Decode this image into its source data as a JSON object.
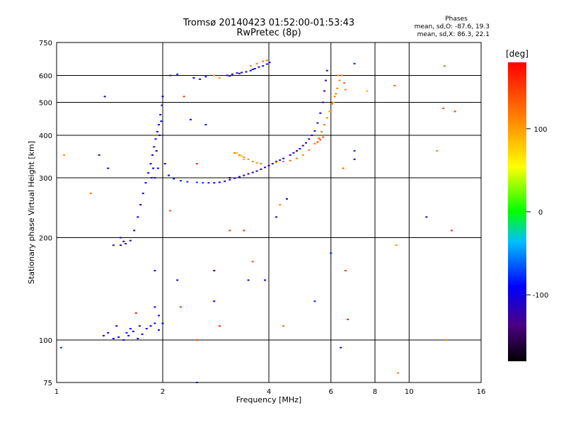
{
  "header": {
    "title_line1": "Tromsø 20140423 01:52:00-01:53:43",
    "title_line2": "RwPretec (8p)"
  },
  "stats": {
    "title": "Phases",
    "line_o": "mean, sd,O: -87.6, 19.3",
    "line_x": "mean, sd,X: 86.3, 22.1"
  },
  "colorbar": {
    "label": "[deg]",
    "ticks": [
      {
        "value": 100,
        "label": "100"
      },
      {
        "value": 0,
        "label": "0"
      },
      {
        "value": -100,
        "label": "-100"
      }
    ],
    "range": [
      -180,
      180
    ]
  },
  "chart_data": {
    "type": "scatter",
    "title": "Tromsø 20140423 01:52:00-01:53:43",
    "subtitle": "RwPretec (8p)",
    "xlabel": "Frequency [MHz]",
    "ylabel": "Stationary phase Virtual Height [km]",
    "x_scale": "log",
    "y_scale": "log",
    "xlim": [
      1,
      16
    ],
    "ylim": [
      75,
      750
    ],
    "x_ticks": [
      {
        "value": 1,
        "label": "1"
      },
      {
        "value": 2,
        "label": "2"
      },
      {
        "value": 4,
        "label": "4"
      },
      {
        "value": 6,
        "label": "6"
      },
      {
        "value": 8,
        "label": "8"
      },
      {
        "value": 10,
        "label": "10"
      },
      {
        "value": 16,
        "label": "16"
      }
    ],
    "y_ticks": [
      {
        "value": 75,
        "label": "75"
      },
      {
        "value": 100,
        "label": "100"
      },
      {
        "value": 200,
        "label": "200"
      },
      {
        "value": 300,
        "label": "300"
      },
      {
        "value": 400,
        "label": "400"
      },
      {
        "value": 500,
        "label": "500"
      },
      {
        "value": 600,
        "label": "600"
      },
      {
        "value": 750,
        "label": "750"
      }
    ],
    "grid": true,
    "color_by": "phase [deg]",
    "series": [
      {
        "points": [
          [
            1.36,
            103,
            -110
          ],
          [
            1.4,
            105,
            -100
          ],
          [
            1.45,
            101,
            -105
          ],
          [
            1.5,
            102,
            -95
          ],
          [
            1.55,
            100,
            -110
          ],
          [
            1.6,
            103,
            -100
          ],
          [
            1.65,
            106,
            -90
          ],
          [
            1.7,
            101,
            -105
          ],
          [
            1.75,
            104,
            -100
          ],
          [
            1.8,
            108,
            -95
          ],
          [
            1.85,
            110,
            -100
          ],
          [
            1.9,
            112,
            -85
          ],
          [
            1.95,
            107,
            -100
          ],
          [
            2.0,
            112,
            -90
          ],
          [
            1.72,
            110,
            -120
          ],
          [
            1.62,
            108,
            -95
          ],
          [
            1.48,
            110,
            -100
          ],
          [
            1.58,
            105,
            -85
          ],
          [
            1.95,
            118,
            -100
          ],
          [
            1.9,
            125,
            -110
          ],
          [
            1.52,
            190,
            -100
          ],
          [
            1.57,
            192,
            -110
          ],
          [
            1.62,
            196,
            -105
          ],
          [
            1.66,
            210,
            -100
          ],
          [
            1.7,
            230,
            -95
          ],
          [
            1.73,
            250,
            -100
          ],
          [
            1.76,
            270,
            -105
          ],
          [
            1.79,
            290,
            -100
          ],
          [
            1.82,
            310,
            -100
          ],
          [
            1.85,
            330,
            -95
          ],
          [
            1.87,
            350,
            -100
          ],
          [
            1.89,
            370,
            -105
          ],
          [
            1.91,
            390,
            -100
          ],
          [
            1.93,
            410,
            -95
          ],
          [
            1.95,
            430,
            -100
          ],
          [
            1.97,
            460,
            -100
          ],
          [
            1.99,
            490,
            -105
          ],
          [
            2.0,
            520,
            -100
          ],
          [
            1.98,
            440,
            -90
          ],
          [
            1.96,
            400,
            -110
          ],
          [
            1.92,
            360,
            -100
          ],
          [
            1.88,
            320,
            -95
          ],
          [
            1.86,
            300,
            -100
          ],
          [
            1.9,
            300,
            -110
          ],
          [
            1.94,
            320,
            -100
          ],
          [
            2.03,
            330,
            -100
          ],
          [
            2.08,
            305,
            -90
          ],
          [
            2.15,
            298,
            -85
          ],
          [
            2.25,
            294,
            -80
          ],
          [
            2.35,
            292,
            -75
          ],
          [
            2.5,
            291,
            -70
          ],
          [
            2.6,
            290,
            -75
          ],
          [
            2.7,
            290,
            -80
          ],
          [
            2.8,
            290,
            -90
          ],
          [
            2.9,
            291,
            -100
          ],
          [
            3.0,
            293,
            -105
          ],
          [
            3.1,
            296,
            -110
          ],
          [
            3.2,
            299,
            -115
          ],
          [
            3.3,
            302,
            -115
          ],
          [
            3.4,
            305,
            -110
          ],
          [
            3.5,
            308,
            -115
          ],
          [
            3.6,
            311,
            -110
          ],
          [
            3.7,
            314,
            -115
          ],
          [
            3.8,
            318,
            -110
          ],
          [
            3.9,
            322,
            -115
          ],
          [
            4.0,
            326,
            -110
          ],
          [
            4.1,
            330,
            -115
          ],
          [
            4.2,
            335,
            -110
          ],
          [
            4.4,
            342,
            -115
          ],
          [
            4.6,
            350,
            -110
          ],
          [
            4.8,
            360,
            -115
          ],
          [
            5.0,
            373,
            -110
          ],
          [
            5.2,
            390,
            -115
          ],
          [
            5.4,
            412,
            -110
          ],
          [
            5.5,
            435,
            -115
          ],
          [
            5.6,
            465,
            -110
          ],
          [
            5.7,
            500,
            -115
          ],
          [
            5.75,
            540,
            -110
          ],
          [
            5.8,
            580,
            -115
          ],
          [
            5.85,
            620,
            -110
          ],
          [
            5.3,
            400,
            -105
          ],
          [
            5.1,
            380,
            -110
          ],
          [
            4.9,
            365,
            -100
          ],
          [
            4.7,
            355,
            -115
          ],
          [
            4.3,
            338,
            -110
          ],
          [
            2.45,
            590,
            -95
          ],
          [
            2.55,
            585,
            -90
          ],
          [
            2.65,
            595,
            -85
          ],
          [
            3.05,
            600,
            -110
          ],
          [
            3.15,
            605,
            -100
          ],
          [
            3.25,
            610,
            -110
          ],
          [
            3.35,
            612,
            -120
          ],
          [
            3.45,
            615,
            -100
          ],
          [
            3.55,
            620,
            -110
          ],
          [
            3.65,
            628,
            -100
          ],
          [
            3.75,
            635,
            -110
          ],
          [
            3.85,
            640,
            -100
          ],
          [
            3.95,
            648,
            -110
          ],
          [
            4.02,
            655,
            -100
          ],
          [
            3.6,
            625,
            -90
          ],
          [
            3.3,
            608,
            -130
          ],
          [
            3.1,
            598,
            -110
          ],
          [
            2.1,
            600,
            -85
          ],
          [
            2.2,
            605,
            -75
          ],
          [
            1.9,
            160,
            -110
          ],
          [
            1.52,
            200,
            -105
          ],
          [
            1.55,
            195,
            -100
          ],
          [
            1.45,
            190,
            -120
          ],
          [
            1.4,
            320,
            -100
          ],
          [
            1.37,
            520,
            -110
          ],
          [
            1.03,
            95,
            -75
          ],
          [
            1.32,
            350,
            -110
          ],
          [
            2.5,
            75,
            -70
          ],
          [
            6.0,
            180,
            -80
          ],
          [
            6.4,
            95,
            -115
          ],
          [
            5.4,
            130,
            -80
          ],
          [
            7.0,
            340,
            -85
          ],
          [
            7.0,
            360,
            -75
          ],
          [
            7.0,
            650,
            -80
          ],
          [
            2.2,
            150,
            -110
          ],
          [
            4.2,
            230,
            -115
          ],
          [
            3.5,
            150,
            -110
          ],
          [
            4.5,
            260,
            -100
          ],
          [
            2.4,
            445,
            -90
          ],
          [
            2.65,
            430,
            -85
          ],
          [
            3.9,
            150,
            -90
          ],
          [
            2.8,
            130,
            -95
          ],
          [
            11.2,
            230,
            -115
          ],
          [
            3.1,
            300,
            -160
          ],
          [
            2.8,
            160,
            -150
          ]
        ]
      },
      {
        "points": [
          [
            3.2,
            355,
            120
          ],
          [
            3.3,
            350,
            115
          ],
          [
            3.4,
            345,
            110
          ],
          [
            3.5,
            340,
            105
          ],
          [
            3.6,
            335,
            110
          ],
          [
            3.7,
            332,
            100
          ],
          [
            3.8,
            330,
            115
          ],
          [
            3.4,
            340,
            95
          ],
          [
            3.35,
            348,
            85
          ],
          [
            3.25,
            355,
            80
          ],
          [
            4.2,
            333,
            110
          ],
          [
            4.4,
            335,
            115
          ],
          [
            4.6,
            337,
            120
          ],
          [
            4.8,
            342,
            115
          ],
          [
            5.0,
            350,
            110
          ],
          [
            5.2,
            362,
            115
          ],
          [
            5.4,
            378,
            120
          ],
          [
            5.55,
            392,
            130
          ],
          [
            5.65,
            410,
            120
          ],
          [
            5.75,
            430,
            115
          ],
          [
            5.85,
            450,
            110
          ],
          [
            5.95,
            470,
            115
          ],
          [
            6.05,
            495,
            120
          ],
          [
            6.15,
            520,
            115
          ],
          [
            6.25,
            550,
            110
          ],
          [
            6.35,
            580,
            115
          ],
          [
            6.45,
            600,
            120
          ],
          [
            6.55,
            570,
            130
          ],
          [
            6.6,
            545,
            110
          ],
          [
            6.2,
            530,
            120
          ],
          [
            5.6,
            388,
            140
          ],
          [
            5.5,
            382,
            150
          ],
          [
            5.7,
            395,
            135
          ],
          [
            6.0,
            470,
            95
          ],
          [
            6.1,
            500,
            90
          ],
          [
            3.55,
            640,
            110
          ],
          [
            3.7,
            650,
            115
          ],
          [
            3.85,
            660,
            120
          ],
          [
            3.95,
            665,
            115
          ],
          [
            2.8,
            600,
            110
          ],
          [
            2.9,
            590,
            100
          ],
          [
            2.3,
            520,
            150
          ],
          [
            6.5,
            320,
            130
          ],
          [
            6.3,
            600,
            110
          ],
          [
            6.6,
            160,
            150
          ],
          [
            6.7,
            115,
            160
          ],
          [
            2.9,
            110,
            160
          ],
          [
            1.68,
            120,
            160
          ],
          [
            2.25,
            125,
            150
          ],
          [
            3.4,
            210,
            160
          ],
          [
            3.1,
            210,
            150
          ],
          [
            2.1,
            240,
            140
          ],
          [
            1.25,
            270,
            120
          ],
          [
            9.2,
            190,
            110
          ],
          [
            9.3,
            80,
            120
          ],
          [
            12.5,
            480,
            140
          ],
          [
            12.0,
            360,
            110
          ],
          [
            13.5,
            470,
            150
          ],
          [
            12.6,
            640,
            130
          ],
          [
            13.2,
            210,
            155
          ],
          [
            2.5,
            330,
            150
          ],
          [
            4.3,
            250,
            110
          ],
          [
            4.4,
            110,
            125
          ],
          [
            9.1,
            560,
            135
          ],
          [
            1.05,
            350,
            110
          ],
          [
            7.6,
            540,
            90
          ],
          [
            3.6,
            170,
            140
          ],
          [
            2.5,
            100,
            145
          ],
          [
            12.8,
            100,
            120
          ]
        ]
      }
    ]
  }
}
